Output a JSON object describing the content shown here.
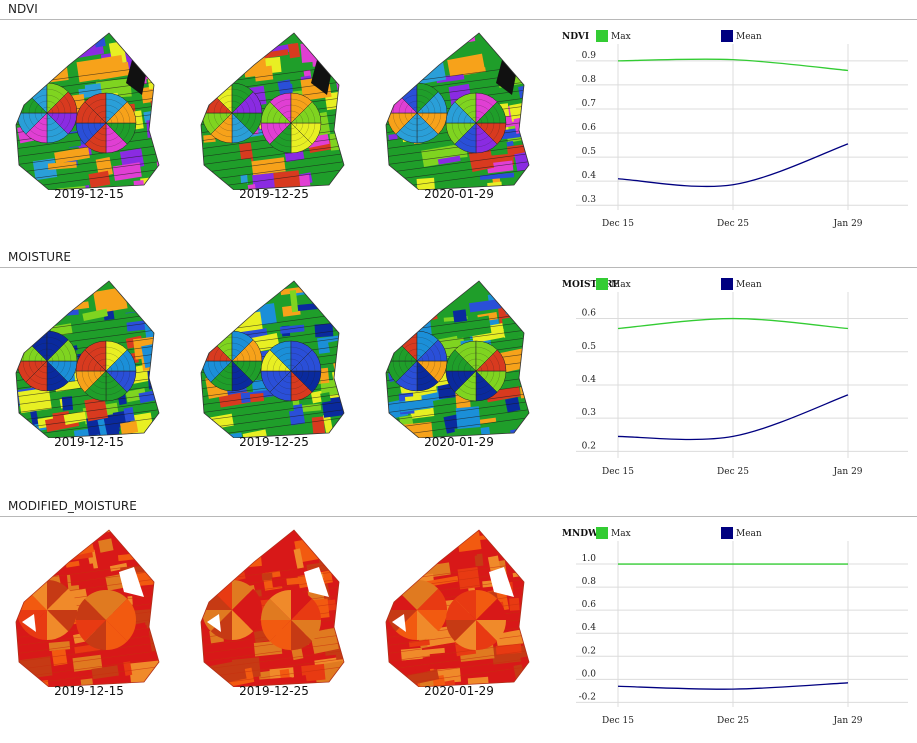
{
  "colors": {
    "max": "#33cc33",
    "mean": "#000080",
    "ndvi_palette": [
      "#1f9e2a",
      "#7fd420",
      "#e8ef23",
      "#f7a21a",
      "#d83a1f",
      "#2a4fd8",
      "#8a2be2",
      "#e03fd3",
      "#2a9fd8",
      "#111111"
    ],
    "moisture_palette": [
      "#1f9e2a",
      "#7fd420",
      "#e8ef23",
      "#f7a21a",
      "#d83a1f",
      "#2a4fd8",
      "#1b8fd8",
      "#0a2a9e",
      "#3fd8e0"
    ],
    "modified_palette": [
      "#d81818",
      "#e83a12",
      "#f25a10",
      "#e07a20",
      "#c63a14",
      "#f08a2a",
      "#ffffff"
    ]
  },
  "sections": [
    {
      "title": "NDVI",
      "dates": [
        "2019-12-15",
        "2019-12-25",
        "2020-01-29"
      ]
    },
    {
      "title": "MOISTURE",
      "dates": [
        "2019-12-15",
        "2019-12-25",
        "2020-01-29"
      ]
    },
    {
      "title": "MODIFIED_MOISTURE",
      "dates": [
        "2019-12-15",
        "2019-12-25",
        "2020-01-29"
      ]
    }
  ],
  "chart_data": [
    {
      "type": "line",
      "title": "NDVI",
      "categories": [
        "Dec 15",
        "Dec 25",
        "Jan 29"
      ],
      "series": [
        {
          "name": "Max",
          "values": [
            0.9,
            0.905,
            0.86
          ]
        },
        {
          "name": "Mean",
          "values": [
            0.41,
            0.385,
            0.555
          ]
        }
      ],
      "yticks": [
        "0.3",
        "0.4",
        "0.5",
        "0.6",
        "0.7",
        "0.8",
        "0.9"
      ],
      "ylim": [
        0.28,
        0.97
      ],
      "grid": true,
      "legend": "top-left"
    },
    {
      "type": "line",
      "title": "MOISTURE",
      "categories": [
        "Dec 15",
        "Dec 25",
        "Jan 29"
      ],
      "series": [
        {
          "name": "Max",
          "values": [
            0.57,
            0.6,
            0.57
          ]
        },
        {
          "name": "Mean",
          "values": [
            0.245,
            0.245,
            0.37
          ]
        }
      ],
      "yticks": [
        "0.2",
        "0.3",
        "0.4",
        "0.5",
        "0.6"
      ],
      "ylim": [
        0.18,
        0.68
      ],
      "grid": true,
      "legend": "top-left"
    },
    {
      "type": "line",
      "title": "MNDWI",
      "categories": [
        "Dec 15",
        "Dec 25",
        "Jan 29"
      ],
      "series": [
        {
          "name": "Max",
          "values": [
            1.0,
            1.0,
            1.0
          ]
        },
        {
          "name": "Mean",
          "values": [
            -0.06,
            -0.085,
            -0.03
          ]
        }
      ],
      "yticks": [
        "-0.2",
        "0.0",
        "0.2",
        "0.4",
        "0.6",
        "0.8",
        "1.0"
      ],
      "ylim": [
        -0.24,
        1.2
      ],
      "grid": true,
      "legend": "top-left"
    }
  ]
}
